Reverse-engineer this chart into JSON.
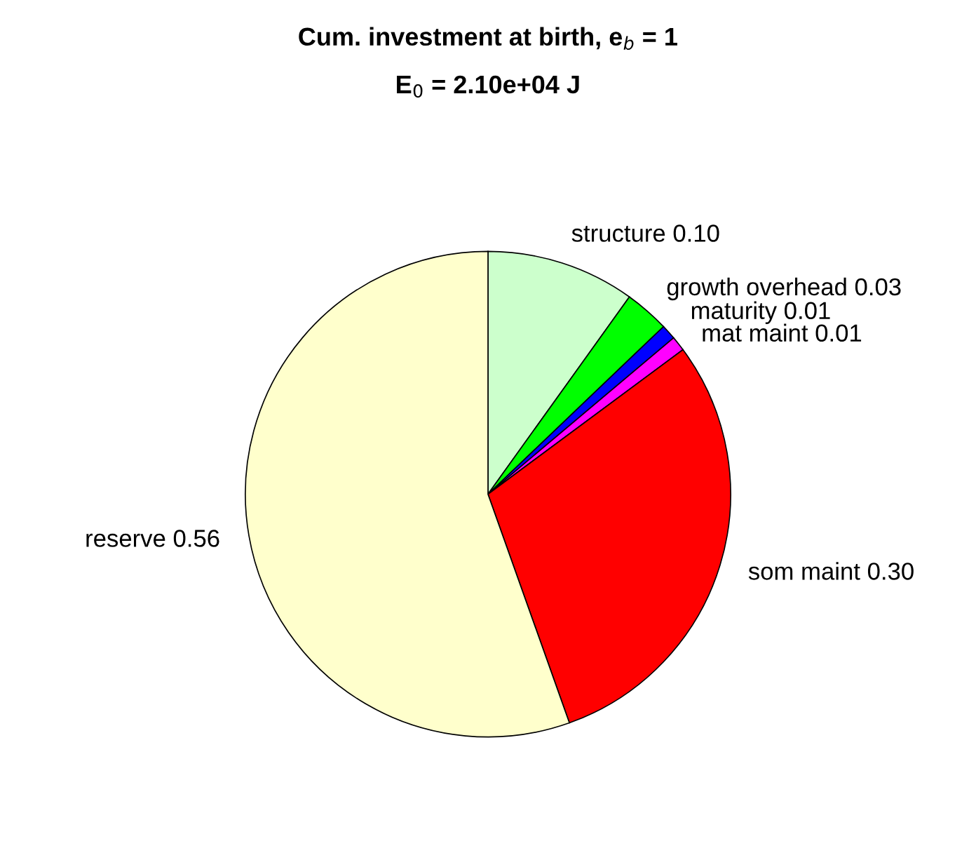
{
  "chart_data": {
    "type": "pie",
    "title": "Cum. investment at birth, e$_{b}$ = 1",
    "subtitle": "E$_{0}$ = 2.10e+04 J",
    "categories": [
      "structure",
      "growth overhead",
      "maturity",
      "mat maint",
      "som maint",
      "reserve"
    ],
    "values": [
      0.1,
      0.03,
      0.01,
      0.01,
      0.3,
      0.56
    ],
    "value_labels": [
      "0.10",
      "0.03",
      "0.01",
      "0.01",
      "0.30",
      "0.56"
    ],
    "colors": [
      "#ccffcc",
      "#00ff00",
      "#0000ff",
      "#ff00ff",
      "#ff0000",
      "#ffffcc"
    ]
  }
}
